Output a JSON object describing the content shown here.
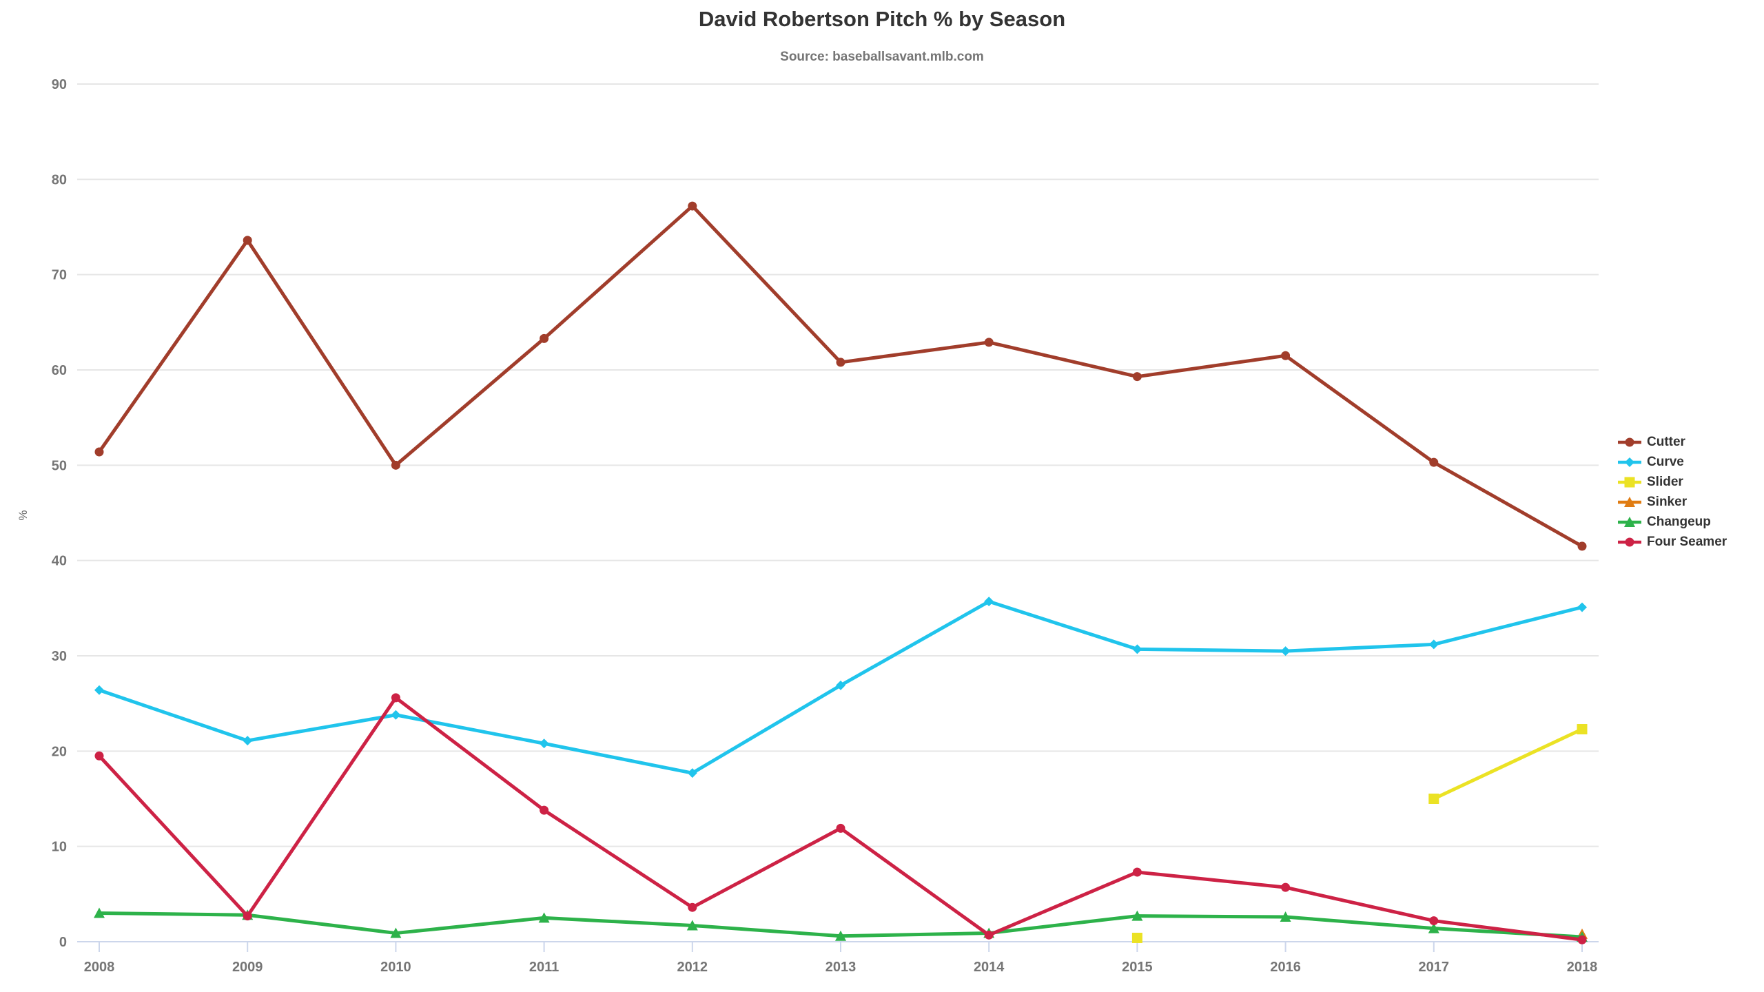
{
  "chart_data": {
    "type": "line",
    "title": "David Robertson Pitch % by Season",
    "subtitle": "Source: baseballsavant.mlb.com",
    "xlabel": "",
    "ylabel": "%",
    "x": [
      2008,
      2009,
      2010,
      2011,
      2012,
      2013,
      2014,
      2015,
      2016,
      2017,
      2018
    ],
    "yticks": [
      0,
      10,
      20,
      30,
      40,
      50,
      60,
      70,
      80,
      90
    ],
    "ylim": [
      0,
      90
    ],
    "grid": true,
    "legend_position": "right",
    "series": [
      {
        "name": "Cutter",
        "color": "#A13D2B",
        "marker": "circle",
        "values": [
          51.4,
          73.6,
          50.0,
          63.3,
          77.2,
          60.8,
          62.9,
          59.3,
          61.5,
          50.3,
          41.5
        ]
      },
      {
        "name": "Curve",
        "color": "#20C4EC",
        "marker": "diamond",
        "values": [
          26.4,
          21.1,
          23.8,
          20.8,
          17.7,
          26.9,
          35.7,
          30.7,
          30.5,
          31.2,
          35.1
        ]
      },
      {
        "name": "Slider",
        "color": "#EBE224",
        "marker": "square",
        "values": [
          null,
          null,
          null,
          null,
          null,
          null,
          null,
          0.4,
          null,
          15.0,
          22.3
        ]
      },
      {
        "name": "Sinker",
        "color": "#E07C12",
        "marker": "triangle",
        "values": [
          null,
          null,
          null,
          null,
          null,
          null,
          null,
          null,
          null,
          null,
          0.8
        ]
      },
      {
        "name": "Changeup",
        "color": "#2DB24A",
        "marker": "triangle",
        "values": [
          3.0,
          2.8,
          0.9,
          2.5,
          1.7,
          0.6,
          0.9,
          2.7,
          2.6,
          1.4,
          0.5
        ]
      },
      {
        "name": "Four Seamer",
        "color": "#CD2245",
        "marker": "circle",
        "values": [
          19.5,
          2.7,
          25.6,
          13.8,
          3.6,
          11.9,
          0.7,
          7.3,
          5.7,
          2.2,
          0.2
        ]
      }
    ]
  },
  "colors": {
    "title_text": "#333333",
    "muted_text": "#757575",
    "grid": "#E6E6E6",
    "axis": "#CCD6EB"
  }
}
